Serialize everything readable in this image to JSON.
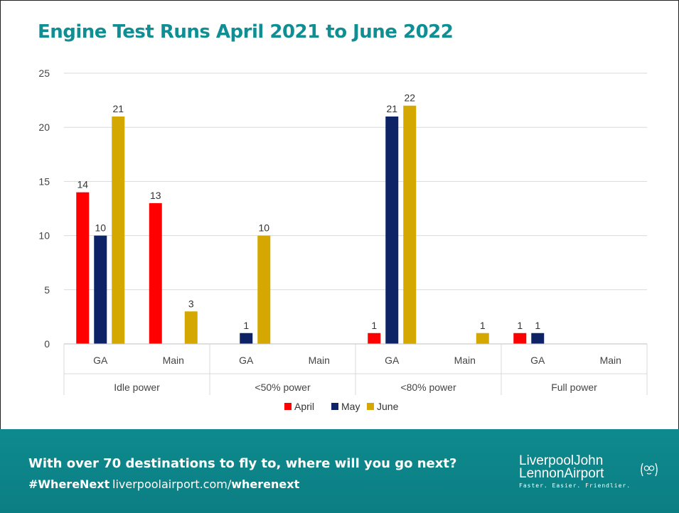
{
  "chart_data": {
    "type": "bar",
    "title": "Engine Test Runs April 2021 to June 2022",
    "groups": [
      {
        "label": "Idle power",
        "categories": [
          "GA",
          "Main"
        ]
      },
      {
        "label": "<50% power",
        "categories": [
          "GA",
          "Main"
        ]
      },
      {
        "label": "<80% power",
        "categories": [
          "GA",
          "Main"
        ]
      },
      {
        "label": "Full power",
        "categories": [
          "GA",
          "Main"
        ]
      }
    ],
    "categories": [
      "GA",
      "Main",
      "GA",
      "Main",
      "GA",
      "Main",
      "GA",
      "Main"
    ],
    "series": [
      {
        "name": "April",
        "color": "#ff0000",
        "values": [
          14,
          13,
          0,
          0,
          1,
          0,
          1,
          0
        ]
      },
      {
        "name": "May",
        "color": "#0d2366",
        "values": [
          10,
          0,
          1,
          0,
          21,
          0,
          1,
          0
        ]
      },
      {
        "name": "June",
        "color": "#d4a800",
        "values": [
          21,
          3,
          10,
          0,
          22,
          1,
          0,
          0
        ]
      }
    ],
    "ylim": [
      0,
      25
    ],
    "yticks": [
      0,
      5,
      10,
      15,
      20,
      25
    ],
    "grid": true,
    "legend": "bottom-center"
  },
  "footer": {
    "tagline": "With over 70 destinations to fly to, where will you go next?",
    "hashtag": "#WhereNext",
    "url_plain": "liverpoolairport.com/",
    "url_bold": "wherenext",
    "logo_line1": "LiverpoolJohn",
    "logo_line2": "LennonAirport",
    "logo_slogan": "Faster. Easier. Friendlier."
  },
  "colors": {
    "accent": "#0f8f93",
    "footer_bg": "#0e8a8e"
  }
}
